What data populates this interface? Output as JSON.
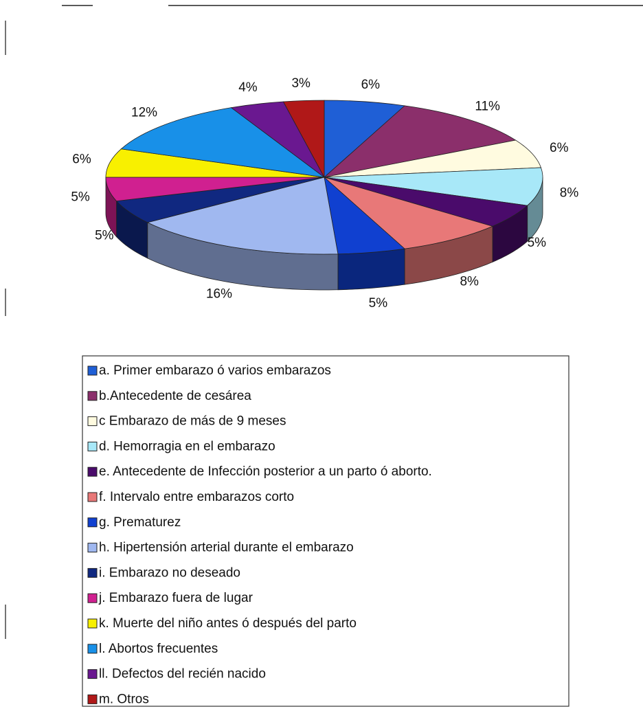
{
  "chart_data": {
    "type": "pie",
    "categories": [
      "a. Primer embarazo ó varios embarazos",
      "b.Antecedente de cesárea",
      "c   Embarazo de más de 9 meses",
      "d. Hemorragia en el embarazo",
      "e.  Antecedente de Infección posterior a un parto ó aborto.",
      "f.  Intervalo entre embarazos corto",
      "g. Prematurez",
      "h. Hipertensión arterial durante el embarazo",
      "i.  Embarazo no deseado",
      "j. Embarazo fuera de lugar",
      "k. Muerte del niño antes ó después del parto",
      "l.  Abortos frecuentes",
      "ll. Defectos del recién nacido",
      "m. Otros"
    ],
    "values": [
      6,
      11,
      6,
      8,
      5,
      8,
      5,
      16,
      5,
      5,
      6,
      12,
      4,
      3
    ],
    "value_labels": [
      "6%",
      "11%",
      "6%",
      "8%",
      "5%",
      "8%",
      "5%",
      "16%",
      "5%",
      "5%",
      "6%",
      "12%",
      "4%",
      "3%"
    ],
    "colors": [
      "#1f5fd6",
      "#8b2f6b",
      "#fffbe0",
      "#a8e8f8",
      "#4a0b6b",
      "#e87878",
      "#1040d0",
      "#a0b8f0",
      "#102880",
      "#d02090",
      "#f8f000",
      "#1890e8",
      "#6a1890",
      "#b01818"
    ],
    "legend": "bottom"
  }
}
